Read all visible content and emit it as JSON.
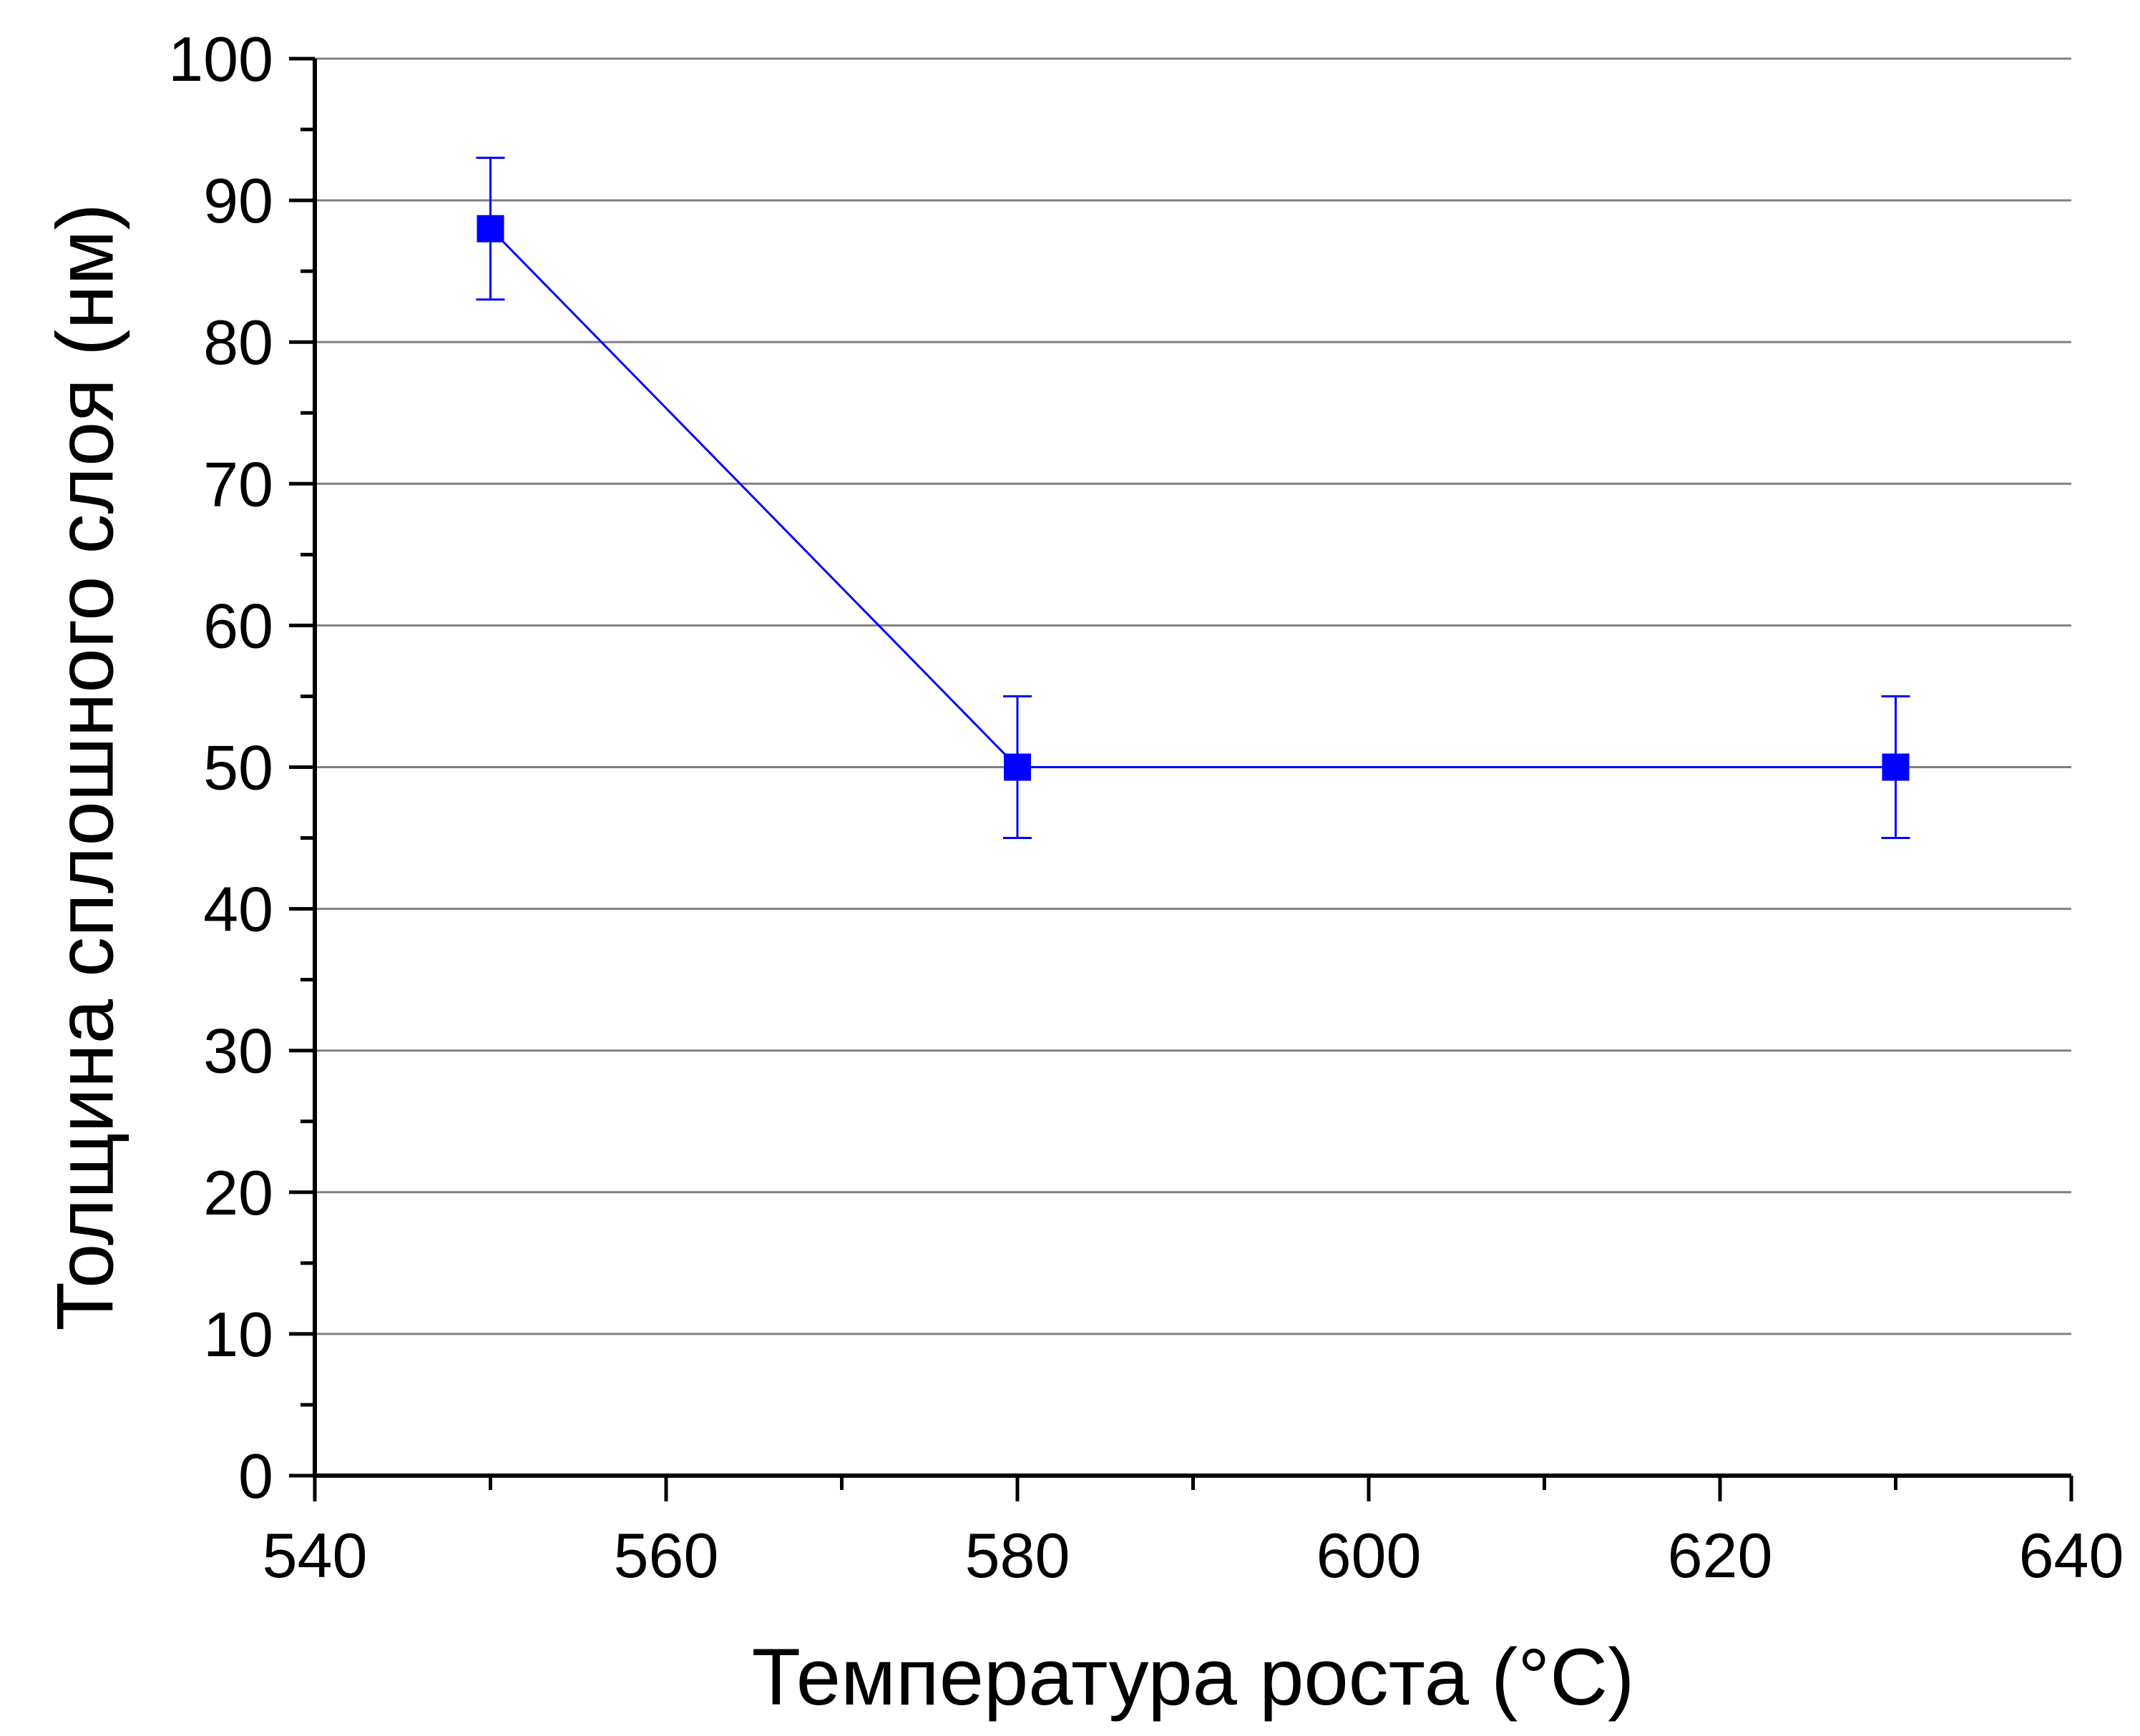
{
  "chart_data": {
    "type": "scatter",
    "title": "",
    "xlabel": "Температура роста (°C)",
    "ylabel": "Толщина сплошного слоя (нм)",
    "xlim": [
      540,
      640
    ],
    "ylim": [
      0,
      100
    ],
    "x_ticks": [
      "540",
      "560",
      "580",
      "600",
      "620",
      "640"
    ],
    "y_ticks": [
      "0",
      "10",
      "20",
      "30",
      "40",
      "50",
      "60",
      "70",
      "80",
      "90",
      "100"
    ],
    "grid": "horizontal",
    "legend": "none",
    "series": [
      {
        "x": [
          550,
          580,
          630
        ],
        "y": [
          88,
          50,
          50
        ],
        "error": [
          5,
          5,
          5
        ],
        "color": "#0000ff",
        "marker": "square",
        "line": true
      }
    ]
  }
}
